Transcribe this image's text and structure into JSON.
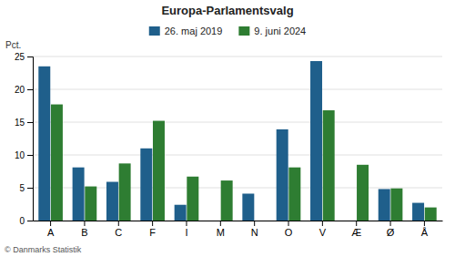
{
  "chart_data": {
    "type": "bar",
    "title": "Europa-Parlamentsvalg",
    "ylabel": "Pct.",
    "categories": [
      "A",
      "B",
      "C",
      "F",
      "I",
      "M",
      "N",
      "O",
      "V",
      "Æ",
      "Ø",
      "Å"
    ],
    "series": [
      {
        "name": "26. maj 2019",
        "color": "#1f5f8b",
        "values": [
          23.5,
          8.1,
          5.9,
          11.0,
          2.4,
          0,
          4.1,
          13.9,
          24.3,
          0,
          4.8,
          2.7
        ]
      },
      {
        "name": "9. juni 2024",
        "color": "#2e7d32",
        "values": [
          17.7,
          5.2,
          8.7,
          15.2,
          6.7,
          6.1,
          0,
          8.1,
          16.8,
          8.5,
          4.9,
          2.0
        ]
      }
    ],
    "ylim": [
      0,
      25
    ],
    "yticks": [
      0,
      5,
      10,
      15,
      20,
      25
    ],
    "grid": true,
    "legend": "top",
    "annotations": [
      "© Danmarks Statistik"
    ]
  }
}
